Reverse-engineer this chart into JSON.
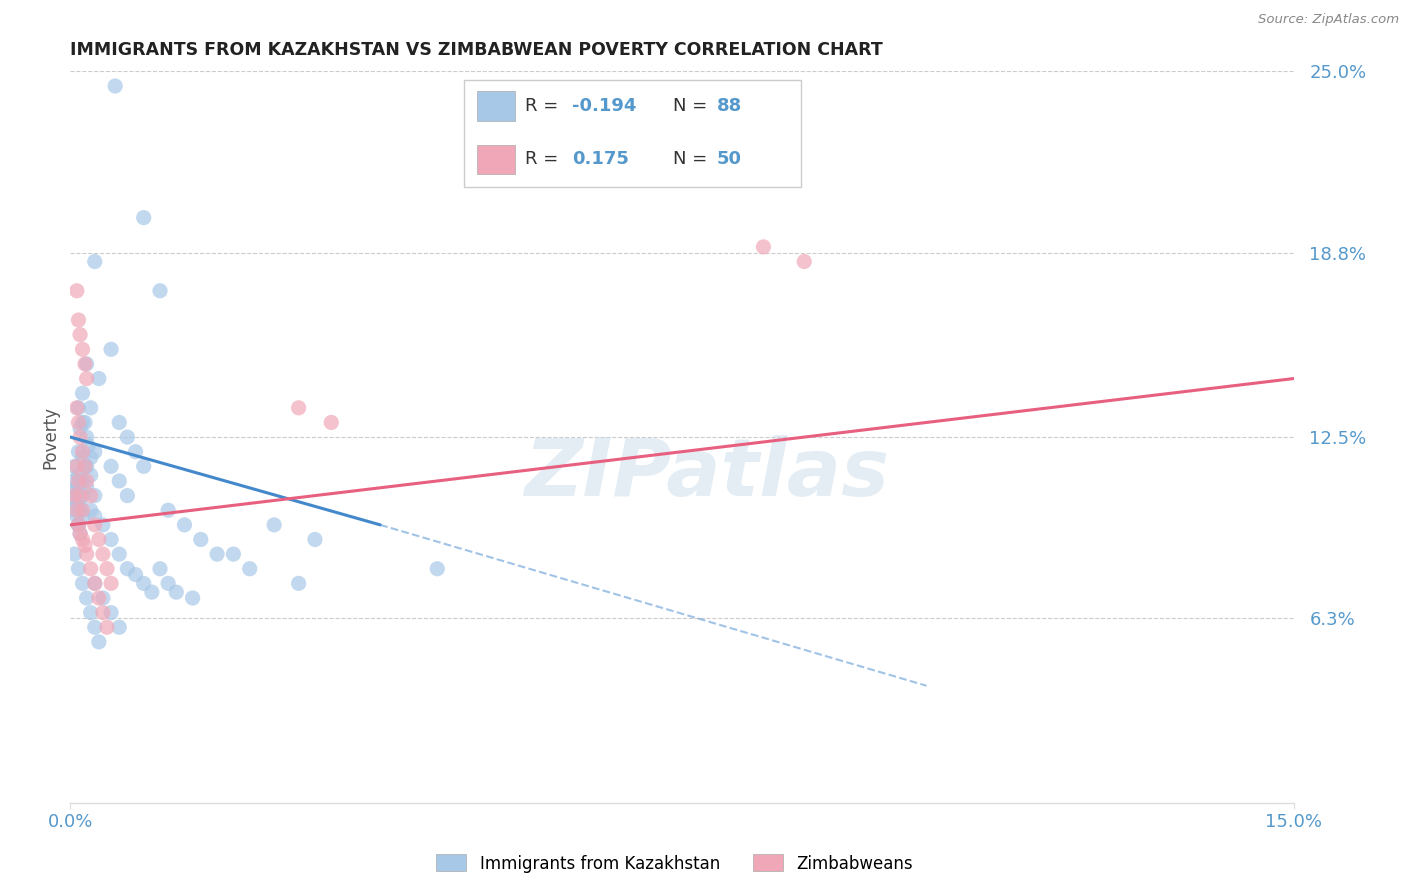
{
  "title": "IMMIGRANTS FROM KAZAKHSTAN VS ZIMBABWEAN POVERTY CORRELATION CHART",
  "source": "Source: ZipAtlas.com",
  "ylabel": "Poverty",
  "watermark": "ZIPatlas",
  "xlim": [
    0.0,
    15.0
  ],
  "ylim": [
    0.0,
    25.0
  ],
  "yticks": [
    6.3,
    12.5,
    18.8,
    25.0
  ],
  "ytick_labels": [
    "6.3%",
    "12.5%",
    "18.8%",
    "25.0%"
  ],
  "xticks": [
    0.0,
    15.0
  ],
  "xtick_labels": [
    "0.0%",
    "15.0%"
  ],
  "blue_R": -0.194,
  "blue_N": 88,
  "pink_R": 0.175,
  "pink_N": 50,
  "blue_color": "#a8c8e8",
  "pink_color": "#f0a8b8",
  "blue_line_color": "#4488cc",
  "pink_line_color": "#e86080",
  "title_color": "#222222",
  "axis_color": "#5599cc",
  "grid_color": "#cccccc",
  "legend_border_color": "#cccccc",
  "blue_scatter_x": [
    0.55,
    0.9,
    1.1,
    0.3,
    0.5,
    0.2,
    0.35,
    0.15,
    0.25,
    0.18,
    0.1,
    0.15,
    0.2,
    0.12,
    0.22,
    0.3,
    0.25,
    0.18,
    0.1,
    0.15,
    0.2,
    0.25,
    0.12,
    0.08,
    0.3,
    0.05,
    0.1,
    0.15,
    0.2,
    0.08,
    0.12,
    0.25,
    0.3,
    0.05,
    0.1,
    0.15,
    0.08,
    0.12,
    0.05,
    0.08,
    0.12,
    0.15,
    0.1,
    0.05,
    0.08,
    0.1,
    0.12,
    0.6,
    0.7,
    0.8,
    0.9,
    0.5,
    0.6,
    0.7,
    1.2,
    1.4,
    1.6,
    1.8,
    2.5,
    3.0,
    4.5,
    0.4,
    0.5,
    0.6,
    0.7,
    0.8,
    0.9,
    1.0,
    1.1,
    1.2,
    1.3,
    1.5,
    2.0,
    2.2,
    2.8,
    0.3,
    0.4,
    0.5,
    0.6,
    0.05,
    0.1,
    0.15,
    0.2,
    0.25,
    0.3,
    0.35
  ],
  "blue_scatter_y": [
    24.5,
    20.0,
    17.5,
    18.5,
    15.5,
    15.0,
    14.5,
    14.0,
    13.5,
    13.0,
    13.5,
    13.0,
    12.5,
    12.8,
    12.2,
    12.0,
    11.8,
    11.5,
    12.0,
    11.8,
    11.5,
    11.2,
    11.0,
    10.8,
    10.5,
    11.5,
    11.2,
    11.0,
    10.8,
    10.5,
    10.2,
    10.0,
    9.8,
    11.0,
    10.8,
    10.5,
    10.2,
    10.0,
    10.5,
    10.2,
    10.0,
    9.8,
    9.5,
    10.0,
    9.8,
    9.5,
    9.2,
    13.0,
    12.5,
    12.0,
    11.5,
    11.5,
    11.0,
    10.5,
    10.0,
    9.5,
    9.0,
    8.5,
    9.5,
    9.0,
    8.0,
    9.5,
    9.0,
    8.5,
    8.0,
    7.8,
    7.5,
    7.2,
    8.0,
    7.5,
    7.2,
    7.0,
    8.5,
    8.0,
    7.5,
    7.5,
    7.0,
    6.5,
    6.0,
    8.5,
    8.0,
    7.5,
    7.0,
    6.5,
    6.0,
    5.5
  ],
  "pink_scatter_x": [
    0.08,
    0.1,
    0.12,
    0.15,
    0.18,
    0.2,
    0.08,
    0.1,
    0.12,
    0.15,
    0.18,
    0.2,
    0.25,
    0.08,
    0.1,
    0.12,
    0.15,
    0.05,
    0.08,
    0.1,
    0.12,
    0.15,
    0.18,
    0.2,
    0.25,
    0.3,
    0.35,
    0.4,
    0.45,
    0.5,
    0.3,
    0.35,
    0.4,
    0.45,
    2.8,
    3.2,
    8.5,
    9.0
  ],
  "pink_scatter_y": [
    17.5,
    16.5,
    16.0,
    15.5,
    15.0,
    14.5,
    13.5,
    13.0,
    12.5,
    12.0,
    11.5,
    11.0,
    10.5,
    11.5,
    11.0,
    10.5,
    10.0,
    10.5,
    10.0,
    9.5,
    9.2,
    9.0,
    8.8,
    8.5,
    8.0,
    9.5,
    9.0,
    8.5,
    8.0,
    7.5,
    7.5,
    7.0,
    6.5,
    6.0,
    13.5,
    13.0,
    19.0,
    18.5
  ],
  "blue_trend_x0": 0.0,
  "blue_trend_y0": 12.5,
  "blue_trend_x1": 3.8,
  "blue_trend_y1": 9.5,
  "blue_dash_x0": 3.8,
  "blue_dash_y0": 9.5,
  "blue_dash_x1": 10.5,
  "blue_dash_y1": 4.0,
  "pink_trend_x0": 0.0,
  "pink_trend_y0": 9.5,
  "pink_trend_x1": 15.0,
  "pink_trend_y1": 14.5
}
